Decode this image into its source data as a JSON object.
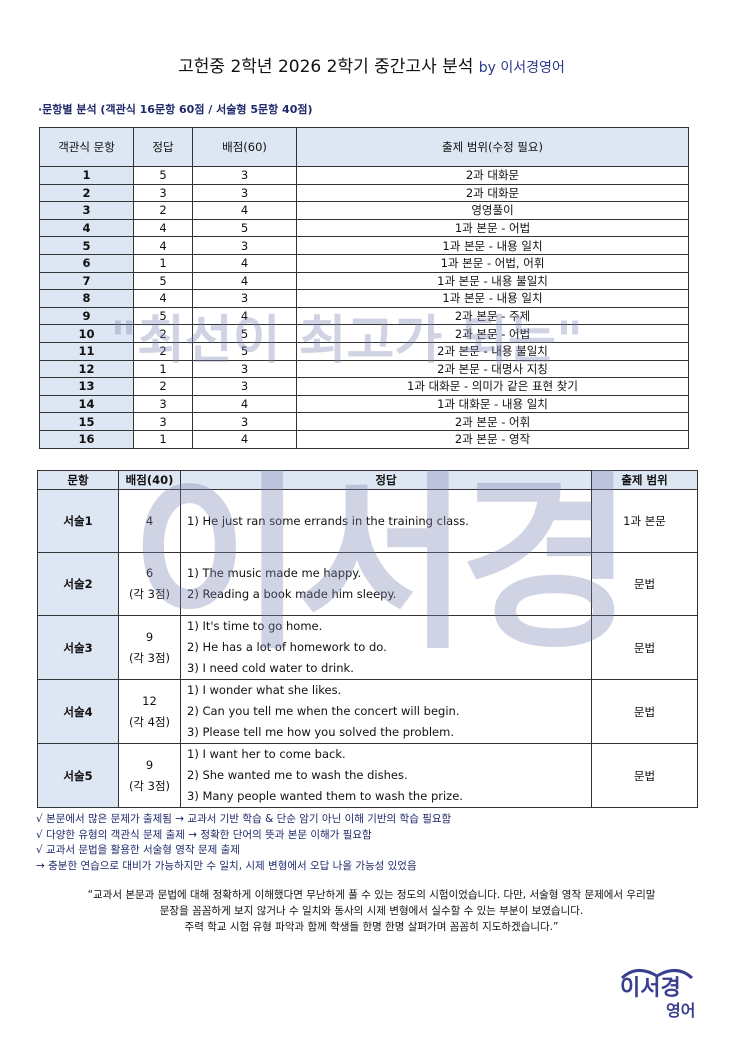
{
  "title": {
    "main": "고헌중 2학년 2026 2학기 중간고사 분석",
    "by": "by 이서경영어"
  },
  "subtitle": "·문항별 분석 (객관식 16문항 60점 / 서술형 5문항 40점)",
  "objective": {
    "headers": [
      "객관식 문항",
      "정답",
      "배점(60)",
      "출제 범위(수정 필요)"
    ],
    "rows": [
      [
        "1",
        "5",
        "3",
        "2과 대화문"
      ],
      [
        "2",
        "3",
        "3",
        "2과 대화문"
      ],
      [
        "3",
        "2",
        "4",
        "영영풀이"
      ],
      [
        "4",
        "4",
        "5",
        "1과 본문 - 어법"
      ],
      [
        "5",
        "4",
        "3",
        "1과 본문 - 내용 일치"
      ],
      [
        "6",
        "1",
        "4",
        "1과 본문  - 어법, 어휘"
      ],
      [
        "7",
        "5",
        "4",
        "1과 본문 - 내용 불일치"
      ],
      [
        "8",
        "4",
        "3",
        "1과 본문 - 내용 일치"
      ],
      [
        "9",
        "5",
        "4",
        "2과 본문 - 주제"
      ],
      [
        "10",
        "2",
        "5",
        "2과 본문 - 어법"
      ],
      [
        "11",
        "2",
        "5",
        "2과 본문 - 내용 불일치"
      ],
      [
        "12",
        "1",
        "3",
        "2과 본문 - 대명사 지칭"
      ],
      [
        "13",
        "2",
        "3",
        "1과 대화문 - 의미가 같은 표현 찾기"
      ],
      [
        "14",
        "3",
        "4",
        "1과 대화문 - 내용 일치"
      ],
      [
        "15",
        "3",
        "3",
        "2과 본문 - 어휘"
      ],
      [
        "16",
        "1",
        "4",
        "2과 본문 - 영작"
      ]
    ]
  },
  "subjective": {
    "headers": [
      "문항",
      "배점(40)",
      "정답",
      "출제 범위"
    ],
    "rows": [
      {
        "q": "서술1",
        "score": "4",
        "each": "",
        "answers": [
          "1) He just ran some errands in the training class."
        ],
        "range": "1과 본문"
      },
      {
        "q": "서술2",
        "score": "6",
        "each": "(각 3점)",
        "answers": [
          "1) The music made me happy.",
          "2) Reading a book made him sleepy."
        ],
        "range": "문법"
      },
      {
        "q": "서술3",
        "score": "9",
        "each": "(각 3점)",
        "answers": [
          "1) It's time to go home.",
          "2) He has a lot of homework to do.",
          "3) I need cold water to drink."
        ],
        "range": "문법"
      },
      {
        "q": "서술4",
        "score": "12",
        "each": "(각 4점)",
        "answers": [
          "1) I wonder what she likes.",
          "2) Can you tell me when the concert will begin.",
          "3) Please tell me how you solved the problem."
        ],
        "range": "문법"
      },
      {
        "q": "서술5",
        "score": "9",
        "each": "(각 3점)",
        "answers": [
          "1) I want her to come back.",
          "2) She wanted me to wash the dishes.",
          "3) Many people wanted them to wash the prize."
        ],
        "range": "문법"
      }
    ]
  },
  "notes": [
    "√ 본문에서 많은 문제가 출제됨 → 교과서 기반 학습 & 단순 암기 아닌 이해 기반의 학습 필요함",
    "√ 다양한 유형의 객관식 문제 출제 → 정확한 단어의 뜻과 본문 이해가 필요함",
    "√ 교과서 문법을 활용한 서술형 영작 문제 출제",
    "→ 충분한 연습으로 대비가 가능하지만 수 일치, 시제 변형에서 오답 나올 가능성 있었음"
  ],
  "quote": [
    "“교과서 본문과 문법에 대해 정확하게 이해했다면 무난하게 풀 수 있는 정도의 시험이었습니다. 다만, 서술형 영작 문제에서 우리말",
    "문장을 꼼꼼하게 보지 않거나 수 일치와 동사의 시제 변형에서 실수할 수 있는 부분이 보였습니다.",
    "주력 학교 시험 유형 파악과 함께 학생들 한명 한명 살펴가며 꼼꼼히 지도하겠습니다.”"
  ],
  "watermark": {
    "slogan": "\"최선이 최고가 되는\"",
    "name": "이서경영어"
  },
  "logo": {
    "line1": "이서경",
    "line2": "영어"
  },
  "colors": {
    "header_bg": "#dde7f3",
    "navy": "#1f2a6b"
  }
}
